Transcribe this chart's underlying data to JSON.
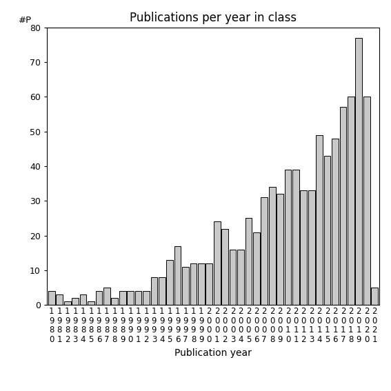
{
  "title": "Publications per year in class",
  "xlabel": "Publication year",
  "ylabel": "#P",
  "years": [
    1980,
    1981,
    1982,
    1983,
    1984,
    1985,
    1986,
    1987,
    1988,
    1989,
    1990,
    1991,
    1992,
    1993,
    1994,
    1995,
    1996,
    1997,
    1998,
    1999,
    2000,
    2001,
    2002,
    2003,
    2004,
    2005,
    2006,
    2007,
    2008,
    2009,
    2010,
    2011,
    2012,
    2013,
    2014,
    2015,
    2016,
    2017,
    2018,
    2019,
    2020,
    2021
  ],
  "values": [
    4,
    3,
    1,
    2,
    3,
    1,
    4,
    5,
    2,
    4,
    4,
    4,
    4,
    8,
    8,
    13,
    17,
    11,
    12,
    12,
    12,
    24,
    22,
    16,
    16,
    25,
    21,
    31,
    34,
    32,
    39,
    39,
    33,
    33,
    49,
    43,
    48,
    57,
    60,
    77,
    60,
    5
  ],
  "bar_color": "#c8c8c8",
  "bar_edge_color": "#000000",
  "bar_linewidth": 0.7,
  "ylim": [
    0,
    80
  ],
  "yticks": [
    0,
    10,
    20,
    30,
    40,
    50,
    60,
    70,
    80
  ],
  "bg_color": "#ffffff",
  "title_fontsize": 12,
  "xlabel_fontsize": 10,
  "tick_fontsize": 8.5
}
